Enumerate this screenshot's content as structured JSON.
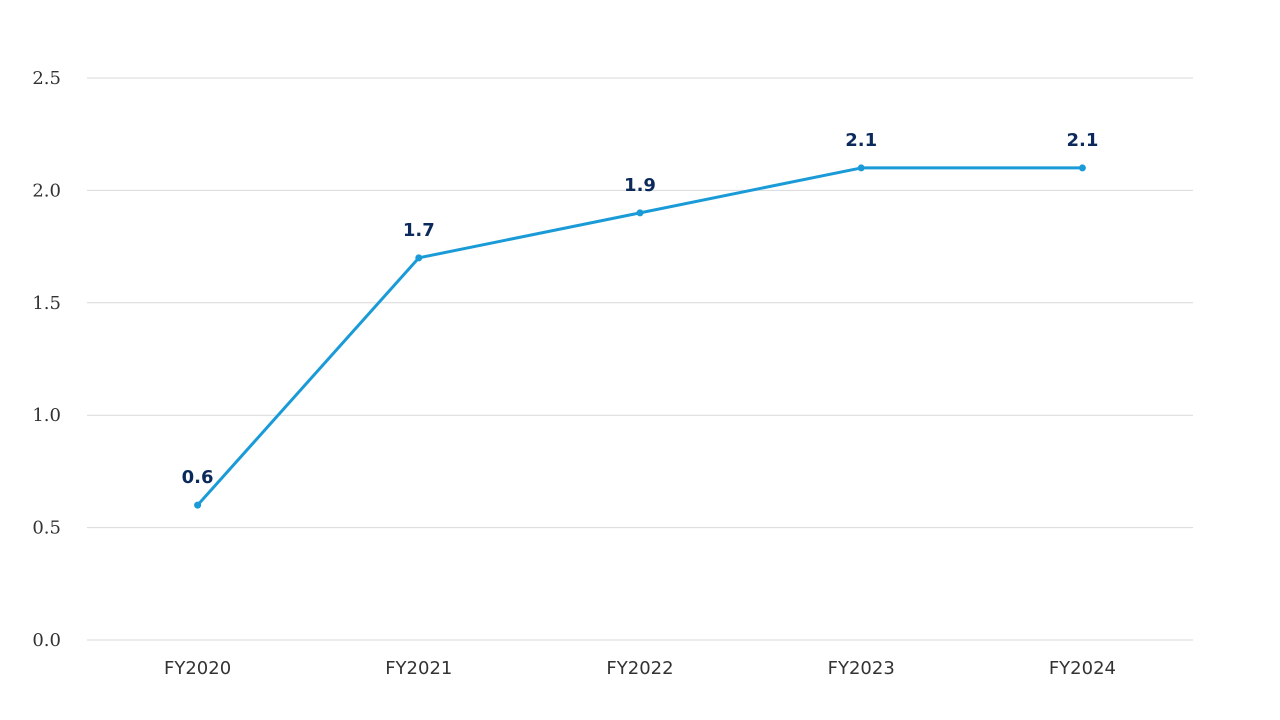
{
  "chart_data": {
    "type": "line",
    "categories": [
      "FY2020",
      "FY2021",
      "FY2022",
      "FY2023",
      "FY2024"
    ],
    "series": [
      {
        "values": [
          0.6,
          1.7,
          1.9,
          2.1,
          2.1
        ],
        "data_labels": [
          "0.6",
          "1.7",
          "1.9",
          "2.1",
          "2.1"
        ]
      }
    ],
    "yticks": [
      "0.0",
      "0.5",
      "1.0",
      "1.5",
      "2.0",
      "2.5"
    ],
    "ylim": [
      0,
      2.5
    ],
    "title": "",
    "xlabel": "",
    "ylabel": "",
    "grid": true,
    "legend": "none",
    "colors": {
      "line": "#1a9bd7",
      "label": "#0b2a5b",
      "grid": "#d9d9d9"
    }
  }
}
